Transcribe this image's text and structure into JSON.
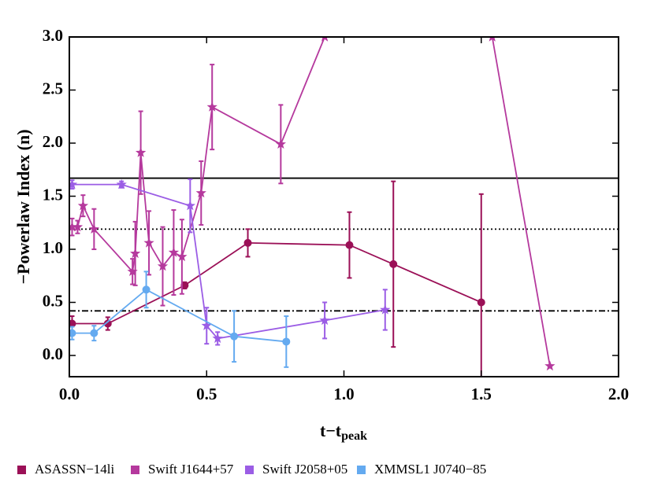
{
  "chart_data": {
    "type": "line",
    "ylabel": "−Powerlaw Index (n)",
    "xlabel": {
      "main": "t−t",
      "sub": "peak"
    },
    "xlim": [
      0,
      2.0
    ],
    "ylim": [
      -0.2,
      3.0
    ],
    "xticks": [
      {
        "value": 0,
        "label": "0.0"
      },
      0.5,
      {
        "value": 1,
        "label": "1.0"
      },
      1.5,
      {
        "value": 2,
        "label": "2.0"
      }
    ],
    "yticks": [
      {
        "value": 0,
        "label": "0.0"
      },
      0.5,
      {
        "value": 1,
        "label": "1.0"
      },
      1.5,
      {
        "value": 2,
        "label": "2.0"
      },
      2.5,
      {
        "value": 3,
        "label": "3.0"
      }
    ],
    "reference_lines": [
      {
        "value": 1.67,
        "style": "solid"
      },
      {
        "value": 1.19,
        "style": "dotted"
      },
      {
        "value": 0.42,
        "style": "dashdot"
      }
    ],
    "series": [
      {
        "name": "ASASSN−14li",
        "color": "#9b1057",
        "marker": "circle",
        "x": [
          0.01,
          0.14,
          0.42,
          0.65,
          1.02,
          1.18,
          1.5
        ],
        "values": [
          0.3,
          0.3,
          0.66,
          1.06,
          1.04,
          0.86,
          0.5
        ],
        "errors": [
          0.07,
          0.06,
          0.03,
          0.13,
          0.31,
          0.78,
          1.02
        ]
      },
      {
        "name": "Swift J1644+57",
        "color": "#b5399d",
        "marker": "star",
        "x": [
          0.01,
          0.03,
          0.05,
          0.09,
          0.23,
          0.24,
          0.26,
          0.29,
          0.34,
          0.38,
          0.41,
          0.48,
          0.52,
          0.77,
          0.93,
          1.54,
          1.75
        ],
        "values": [
          1.21,
          1.21,
          1.41,
          1.19,
          0.79,
          0.96,
          1.91,
          1.06,
          0.84,
          0.97,
          0.93,
          1.53,
          2.34,
          1.99,
          3.0,
          3.0,
          -0.1
        ],
        "errors": [
          0.08,
          0.06,
          0.1,
          0.19,
          0.12,
          0.3,
          0.39,
          0.3,
          0.37,
          0.4,
          0.35,
          0.3,
          0.4,
          0.37,
          0,
          0,
          0
        ]
      },
      {
        "name": "Swift J2058+05",
        "color": "#9b5de5",
        "marker": "star",
        "x": [
          0.01,
          0.19,
          0.44,
          0.5,
          0.54,
          0.93,
          1.15
        ],
        "values": [
          1.61,
          1.61,
          1.41,
          0.28,
          0.16,
          0.33,
          0.43
        ],
        "errors": [
          0.04,
          0.03,
          0.25,
          0.17,
          0.06,
          0.17,
          0.19
        ]
      },
      {
        "name": "XMMSL1 J0740−85",
        "color": "#64aaf0",
        "marker": "circle",
        "x": [
          0.01,
          0.09,
          0.28,
          0.6,
          0.79
        ],
        "values": [
          0.21,
          0.21,
          0.62,
          0.18,
          0.13
        ],
        "errors": [
          0.06,
          0.07,
          0.17,
          0.24,
          0.24
        ]
      }
    ]
  }
}
